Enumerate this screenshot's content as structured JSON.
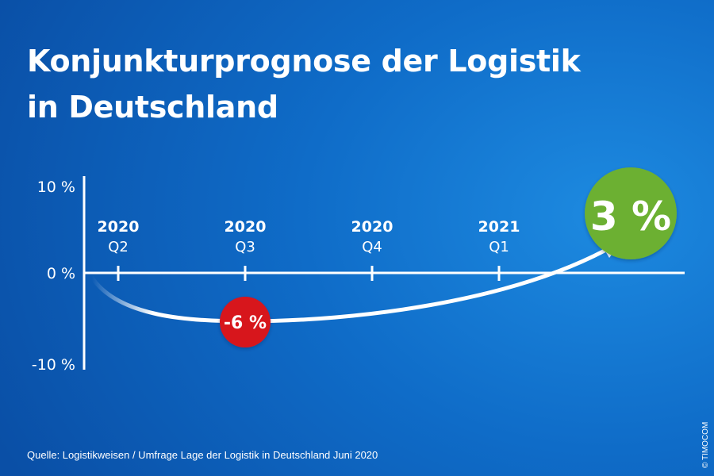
{
  "title_line1": "Konjunkturprognose der Logistik",
  "title_line2": "in Deutschland",
  "source": "Quelle: Logistikweisen / Umfrage Lage der Logistik in Deutschland Juni 2020",
  "copyright": "© TIMOCOM",
  "chart_data": {
    "type": "line",
    "y_ticks": [
      "10 %",
      "0 %",
      "-10 %"
    ],
    "ylim": [
      -10,
      10
    ],
    "categories": [
      {
        "year": "2020",
        "quarter": "Q2"
      },
      {
        "year": "2020",
        "quarter": "Q3"
      },
      {
        "year": "2020",
        "quarter": "Q4"
      },
      {
        "year": "2021",
        "quarter": "Q1"
      }
    ],
    "trough": {
      "value": -6,
      "label": "-6 %",
      "color": "#d7121e"
    },
    "target": {
      "value": 3,
      "label": "3 %",
      "color": "#6cb033"
    },
    "grid": false
  }
}
